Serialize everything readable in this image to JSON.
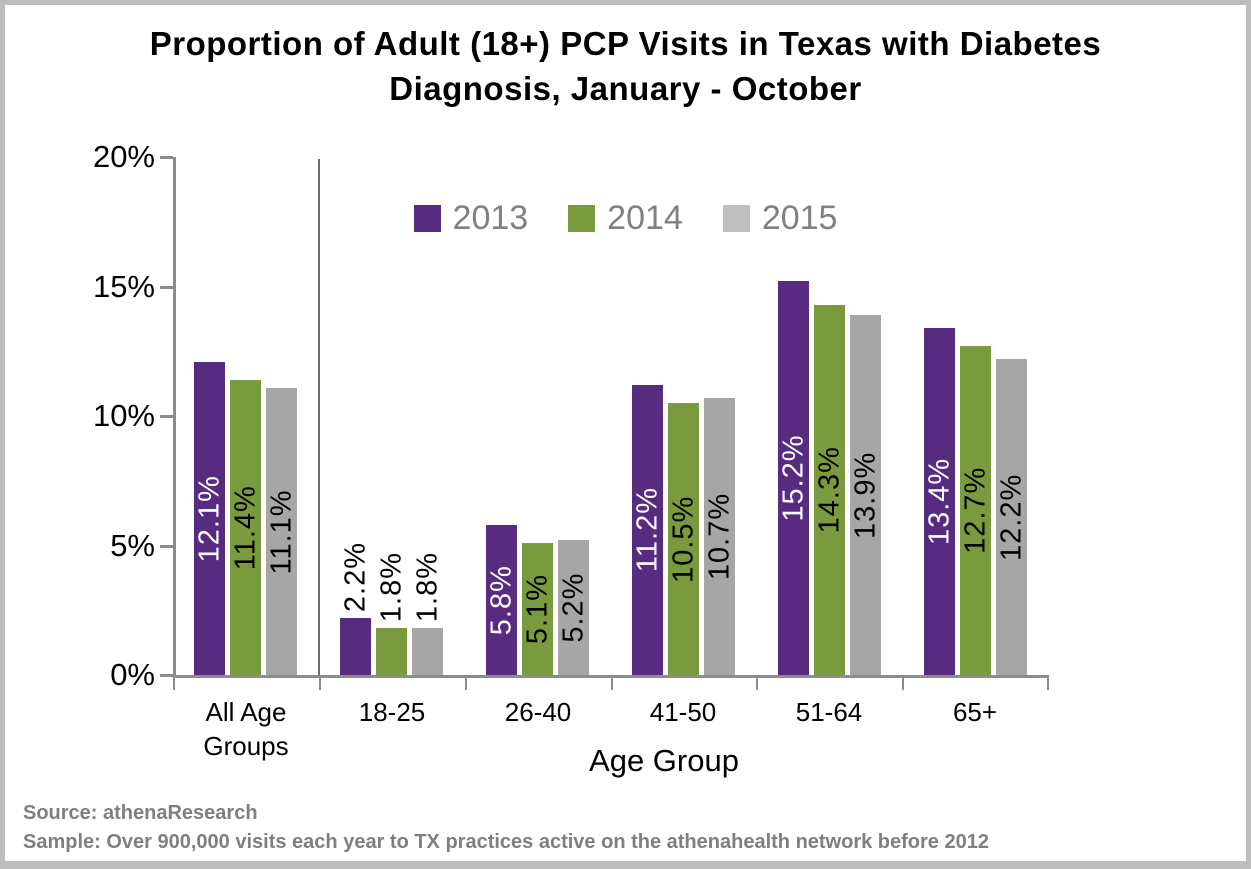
{
  "title": {
    "lines": [
      "Proportion of Adult (18+) PCP Visits in Texas with Diabetes",
      "Diagnosis, January - October"
    ]
  },
  "chart_data": {
    "type": "bar",
    "title": "Proportion of Adult (18+) PCP Visits in Texas with Diabetes Diagnosis, January - October",
    "categories": [
      "All Age Groups",
      "18-25",
      "26-40",
      "41-50",
      "51-64",
      "65+"
    ],
    "series": [
      {
        "name": "2013",
        "color": "#572B80",
        "values": [
          12.1,
          2.2,
          5.8,
          11.2,
          15.2,
          13.4
        ]
      },
      {
        "name": "2014",
        "color": "#7A9A3E",
        "values": [
          11.4,
          1.8,
          5.1,
          10.5,
          14.3,
          12.7
        ]
      },
      {
        "name": "2015",
        "color": "#A6A6A6",
        "legend_color": "#BFBFBF",
        "values": [
          11.1,
          1.8,
          5.2,
          10.7,
          13.9,
          12.2
        ]
      }
    ],
    "value_suffix": "%",
    "xlabel": "Age Group",
    "ylabel": "",
    "ylim": [
      0,
      20
    ],
    "yticks": [
      {
        "value": 0,
        "label": "0%"
      },
      {
        "value": 5,
        "label": "5%"
      },
      {
        "value": 10,
        "label": "10%"
      },
      {
        "value": 15,
        "label": "15%"
      },
      {
        "value": 20,
        "label": "20%"
      }
    ],
    "legend_position": "top-center",
    "grid": false,
    "divider_after_category": "All Age Groups",
    "label_colors": {
      "inside_2013": "#FFFFFF",
      "inside_other": "#000000",
      "outside": "#000000"
    }
  },
  "footer": {
    "source": "Source: athenaResearch",
    "sample": "Sample: Over 900,000 visits each year to TX practices active on the athenahealth network before 2012"
  }
}
